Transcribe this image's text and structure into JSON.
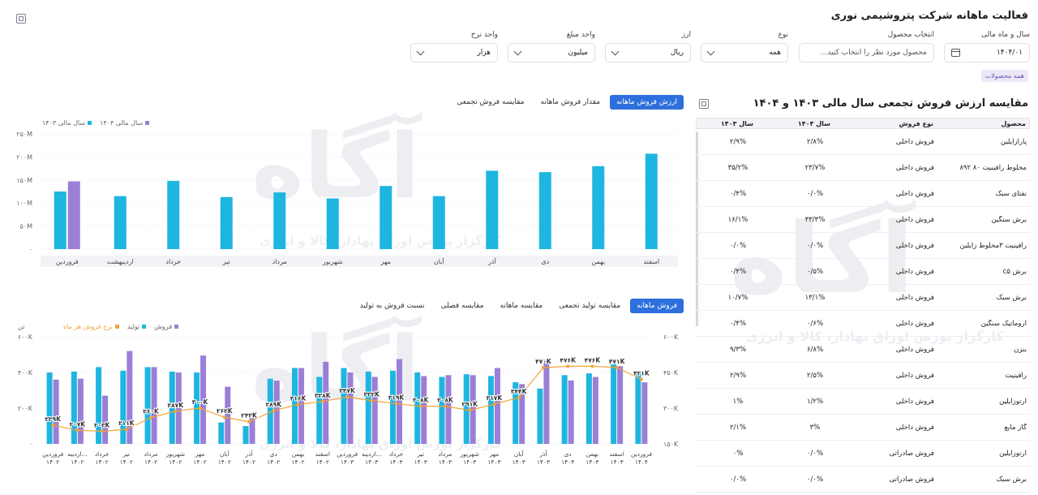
{
  "header": {
    "title": "فعالیت ماهانه شرکت پتروشیمی نوری",
    "all_products": "همه محصولات"
  },
  "filters": {
    "year_month": {
      "label": "سال و ماه مالی",
      "value": "۱۴۰۴/۰۱"
    },
    "product": {
      "label": "انتخاب محصول",
      "placeholder": "محصول مورد نظر را انتخاب کنید..."
    },
    "type": {
      "label": "نوع",
      "value": "همه"
    },
    "currency": {
      "label": "ارز",
      "value": "ریال"
    },
    "amount_unit": {
      "label": "واحد مبلغ",
      "value": "میلیون"
    },
    "rate_unit": {
      "label": "واحد نرخ",
      "value": "هزار"
    }
  },
  "watermark": {
    "logo": "آگاه",
    "text": "کارگزار بورس اوراق بهادار، کالا و انرژی"
  },
  "top_tabs": [
    "ارزش فروش ماهانه",
    "مقدار فروش ماهانه",
    "مقایسه فروش تجمعی"
  ],
  "bottom_tabs": [
    "فروش ماهانه",
    "مقایسه تولید تجمعی",
    "مقایسه ماهانه",
    "مقایسه فصلی",
    "نسبت فروش به تولید"
  ],
  "table": {
    "title": "مقایسه ارزش فروش تجمعی سال مالی ۱۴۰۳ و ۱۴۰۴",
    "headers": [
      "محصول",
      "نوع فروش",
      "سال ۱۴۰۴",
      "سال ۱۴۰۳"
    ],
    "rows": [
      [
        "پارازایلین",
        "فروش داخلی",
        "۲/۸%",
        "۲/۹%"
      ],
      [
        "مخلوط رافینیت ۸۰ ۸۹۲",
        "فروش داخلی",
        "۲۳/۷%",
        "۳۵/۲%"
      ],
      [
        "نفتای سبک",
        "فروش داخلی",
        "۰/۰%",
        "۰/۴%"
      ],
      [
        "برش سنگین",
        "فروش داخلی",
        "۳۳/۳%",
        "۱۶/۱%"
      ],
      [
        "رافینیت ۳مخلوط زایلین",
        "فروش داخلی",
        "۰/۰%",
        "۰/۰%"
      ],
      [
        "برش c۵",
        "فروش داخلی",
        "۰/۵%",
        "۰/۴%"
      ],
      [
        "برش سبک",
        "فروش داخلی",
        "۱۳/۱%",
        "۱۰/۷%"
      ],
      [
        "آروماتیک سنگین",
        "فروش داخلی",
        "۰/۶%",
        "۰/۴%"
      ],
      [
        "بنزن",
        "فروش داخلی",
        "۶/۸%",
        "۹/۳%"
      ],
      [
        "رافینیت",
        "فروش داخلی",
        "۲/۵%",
        "۲/۹%"
      ],
      [
        "ارتوزایلین",
        "فروش داخلی",
        "۱/۲%",
        "۱%"
      ],
      [
        "گاز مایع",
        "فروش داخلی",
        "۳%",
        "۲/۱%"
      ],
      [
        "ارتوزایلین",
        "فروش صادراتی",
        "۰/۰%",
        "۰%"
      ],
      [
        "برش سبک",
        "فروش صادراتی",
        "۰/۰%",
        "۰/۰%"
      ]
    ]
  },
  "chart_data": [
    {
      "type": "bar",
      "legend": [
        "سال مالی ۱۴۰۴",
        "سال مالی ۱۴۰۳"
      ],
      "colors": {
        "y1404": "#9b7fd6",
        "y1403": "#1eb6e0"
      },
      "categories": [
        "فروردین",
        "اردیبهشت",
        "خرداد",
        "تیر",
        "مرداد",
        "شهریور",
        "مهر",
        "آبان",
        "آذر",
        "دی",
        "بهمن",
        "اسفند"
      ],
      "series": [
        {
          "name": "سال مالی ۱۴۰۳",
          "values": [
            125,
            115,
            148,
            113,
            123,
            110,
            137,
            115,
            170,
            167,
            180,
            207
          ]
        },
        {
          "name": "سال مالی ۱۴۰۴",
          "values": [
            147,
            null,
            null,
            null,
            null,
            null,
            null,
            null,
            null,
            null,
            null,
            null
          ]
        }
      ],
      "yticks": [
        "۰",
        "۵۰M",
        "۱۰۰M",
        "۱۵۰M",
        "۲۰۰M",
        "۲۵۰M"
      ],
      "ylim": [
        0,
        250
      ]
    },
    {
      "type": "bar",
      "legend": [
        "فروش",
        "تولید",
        "نرخ فروش هر ماه"
      ],
      "colors": {
        "sales": "#9b7fd6",
        "production": "#1eb6e0",
        "rate": "#f3a537"
      },
      "left_unit": "تن",
      "left_ticks": [
        "۰",
        "۲۰۰K",
        "۴۰۰K",
        "۶۰۰K"
      ],
      "right_ticks": [
        "۱۵۰K",
        "۳۰۰K",
        "۴۵۰K",
        "۶۰۰K"
      ],
      "left_ylim": [
        0,
        600
      ],
      "right_ylim": [
        150,
        600
      ],
      "categories": [
        [
          "فروردین",
          "۱۴۰۲"
        ],
        [
          "اردیبه...",
          "۱۴۰۲"
        ],
        [
          "خرداد",
          "۱۴۰۲"
        ],
        [
          "تیر",
          "۱۴۰۲"
        ],
        [
          "مرداد",
          "۱۴۰۲"
        ],
        [
          "شهریور",
          "۱۴۰۲"
        ],
        [
          "مهر",
          "۱۴۰۲"
        ],
        [
          "آبان",
          "۱۴۰۲"
        ],
        [
          "آذر",
          "۱۴۰۲"
        ],
        [
          "دی",
          "۱۴۰۲"
        ],
        [
          "بهمن",
          "۱۴۰۲"
        ],
        [
          "اسفند",
          "۱۴۰۲"
        ],
        [
          "فروردین",
          "۱۴۰۳"
        ],
        [
          "اردیبه...",
          "۱۴۰۳"
        ],
        [
          "خرداد",
          "۱۴۰۳"
        ],
        [
          "تیر",
          "۱۴۰۳"
        ],
        [
          "مرداد",
          "۱۴۰۳"
        ],
        [
          "شهریور",
          "۱۴۰۳"
        ],
        [
          "مهر",
          "۱۴۰۳"
        ],
        [
          "آبان",
          "۱۴۰۳"
        ],
        [
          "آذر",
          "۱۴۰۳"
        ],
        [
          "دی",
          "۱۴۰۳"
        ],
        [
          "بهمن",
          "۱۴۰۳"
        ],
        [
          "اسفند",
          "۱۴۰۳"
        ],
        [
          "فروردین",
          "۱۴۰۴"
        ]
      ],
      "production": [
        400,
        405,
        430,
        410,
        430,
        405,
        400,
        120,
        100,
        365,
        425,
        375,
        425,
        405,
        410,
        400,
        375,
        390,
        380,
        345,
        310,
        385,
        395,
        445,
        395
      ],
      "sales": [
        360,
        365,
        270,
        520,
        430,
        400,
        495,
        320,
        145,
        355,
        425,
        460,
        400,
        375,
        475,
        380,
        385,
        385,
        425,
        335,
        470,
        355,
        375,
        435,
        345
      ],
      "rate": [
        229,
        207,
        203,
        211,
        260,
        287,
        300,
        262,
        243,
        289,
        316,
        328,
        347,
        332,
        319,
        308,
        308,
        291,
        317,
        344,
        470,
        476,
        476,
        471,
        421
      ],
      "rate_labels": [
        "۲۲۹K",
        "۲۰۷K",
        "۲۰۳K",
        "۲۱۱K",
        "۲۶۰K",
        "۲۸۷K",
        "۳۰۰K",
        "۲۶۲K",
        "۲۴۳K",
        "۲۸۹K",
        "۳۱۶K",
        "۳۲۸K",
        "۳۴۷K",
        "۳۳۲K",
        "۳۱۹K",
        "۳۰۸K",
        "۳۰۸K",
        "۲۹۱K",
        "۳۱۷K",
        "۳۴۴K",
        "۴۷۰K",
        "۴۷۶K",
        "۴۷۶K",
        "۴۷۱K",
        "۴۲۱K"
      ]
    }
  ]
}
